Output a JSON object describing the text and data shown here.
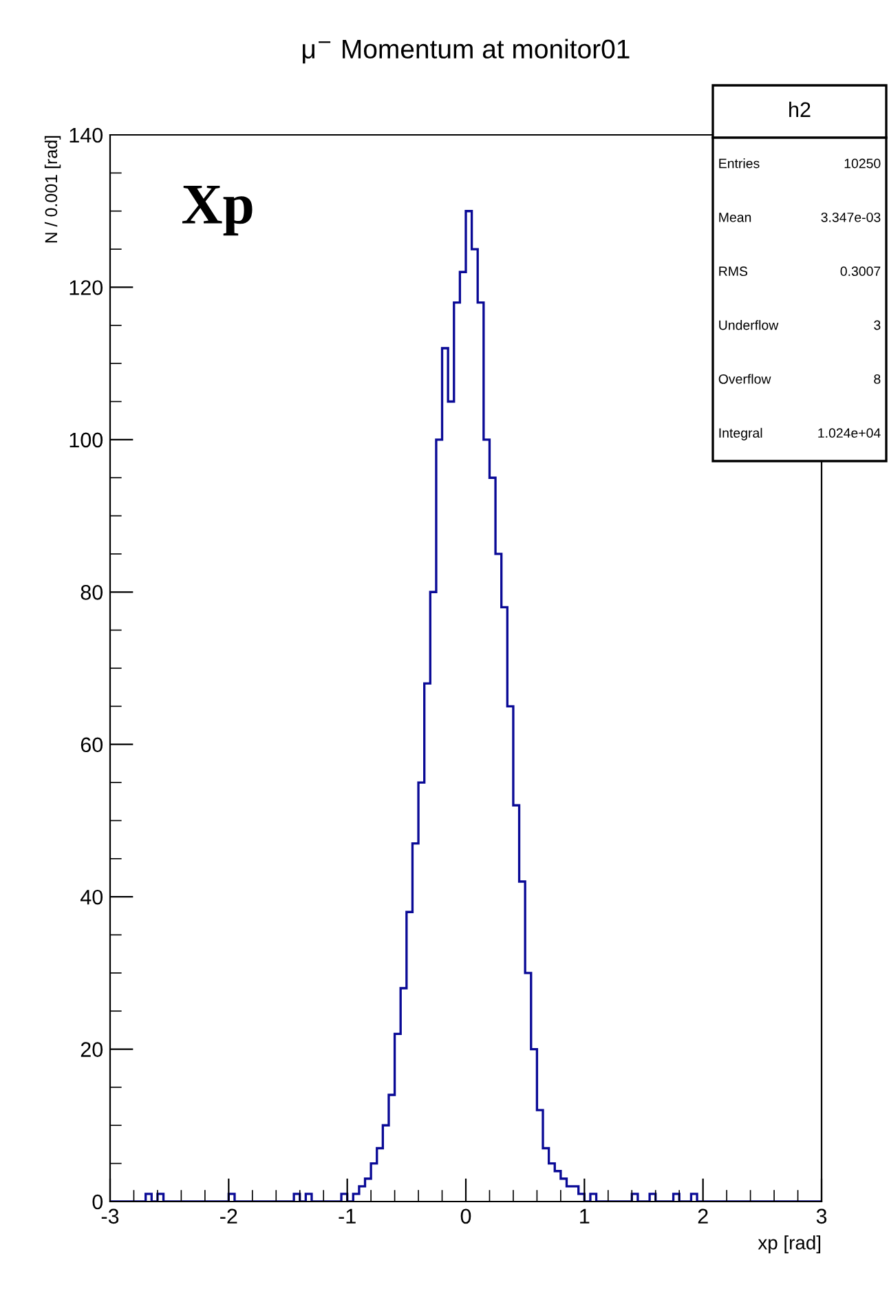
{
  "chart_data": {
    "type": "histogram",
    "title": "μ$^{−}$ Momentum at monitor01",
    "xlabel": "xp [rad]",
    "ylabel": "N / 0.001 [rad]",
    "annotations": [
      "Xp",
      "h2",
      "Entries 10250",
      "Mean 3.347e-03",
      "RMS 0.3007",
      "Underflow 3",
      "Overflow 8",
      "Integral 1.024e+04"
    ],
    "bins": [
      -3.0,
      -2.95,
      -2.9,
      -2.85,
      -2.8,
      -2.75,
      -2.7,
      -2.65,
      -2.6,
      -2.55,
      -2.5,
      -2.45,
      -2.4,
      -2.35,
      -2.3,
      -2.25,
      -2.2,
      -2.15,
      -2.1,
      -2.05,
      -2.0,
      -1.95,
      -1.9,
      -1.85,
      -1.8,
      -1.75,
      -1.7,
      -1.65,
      -1.6,
      -1.55,
      -1.5,
      -1.45,
      -1.4,
      -1.35,
      -1.3,
      -1.25,
      -1.2,
      -1.15,
      -1.1,
      -1.05,
      -1.0,
      -0.95,
      -0.9,
      -0.85,
      -0.8,
      -0.75,
      -0.7,
      -0.65,
      -0.6,
      -0.55,
      -0.5,
      -0.45,
      -0.4,
      -0.35,
      -0.3,
      -0.25,
      -0.2,
      -0.15,
      -0.1,
      -0.05,
      0.0,
      0.05,
      0.1,
      0.15,
      0.2,
      0.25,
      0.3,
      0.35,
      0.4,
      0.45,
      0.5,
      0.55,
      0.6,
      0.65,
      0.7,
      0.75,
      0.8,
      0.85,
      0.9,
      0.95,
      1.0,
      1.05,
      1.1,
      1.15,
      1.2,
      1.25,
      1.3,
      1.35,
      1.4,
      1.45,
      1.5,
      1.55,
      1.6,
      1.65,
      1.7,
      1.75,
      1.8,
      1.85,
      1.9,
      1.95,
      2.0,
      2.05,
      2.1,
      2.15,
      2.2,
      2.25,
      2.3,
      2.35,
      2.4,
      2.45,
      2.5,
      2.55,
      2.6,
      2.65,
      2.7,
      2.75,
      2.8,
      2.85,
      2.9,
      2.95,
      3.0
    ],
    "values": [
      0,
      0,
      0,
      0,
      0,
      0,
      1,
      0,
      1,
      0,
      0,
      0,
      0,
      0,
      0,
      0,
      0,
      0,
      0,
      0,
      1,
      0,
      0,
      0,
      0,
      0,
      0,
      0,
      0,
      0,
      0,
      1,
      0,
      1,
      0,
      0,
      0,
      0,
      0,
      1,
      0,
      1,
      2,
      3,
      5,
      7,
      10,
      14,
      22,
      28,
      38,
      47,
      55,
      68,
      80,
      100,
      112,
      105,
      118,
      122,
      130,
      125,
      118,
      100,
      95,
      85,
      78,
      65,
      52,
      42,
      30,
      20,
      12,
      7,
      5,
      4,
      3,
      2,
      2,
      1,
      0,
      1,
      0,
      0,
      0,
      0,
      0,
      0,
      1,
      0,
      0,
      1,
      0,
      0,
      0,
      1,
      0,
      0,
      1,
      0,
      0,
      0,
      0,
      0,
      0,
      0,
      0,
      0,
      0,
      0,
      0,
      0,
      0,
      0,
      0,
      0,
      0,
      0,
      0,
      0
    ],
    "color": "#0a0a96",
    "xlim": [
      -3,
      3
    ],
    "ylim": [
      0,
      140
    ],
    "xticks": [
      -3,
      -2,
      -1,
      0,
      1,
      2,
      3
    ],
    "yticks": [
      0,
      20,
      40,
      60,
      80,
      100,
      120,
      140
    ],
    "grid": false
  }
}
